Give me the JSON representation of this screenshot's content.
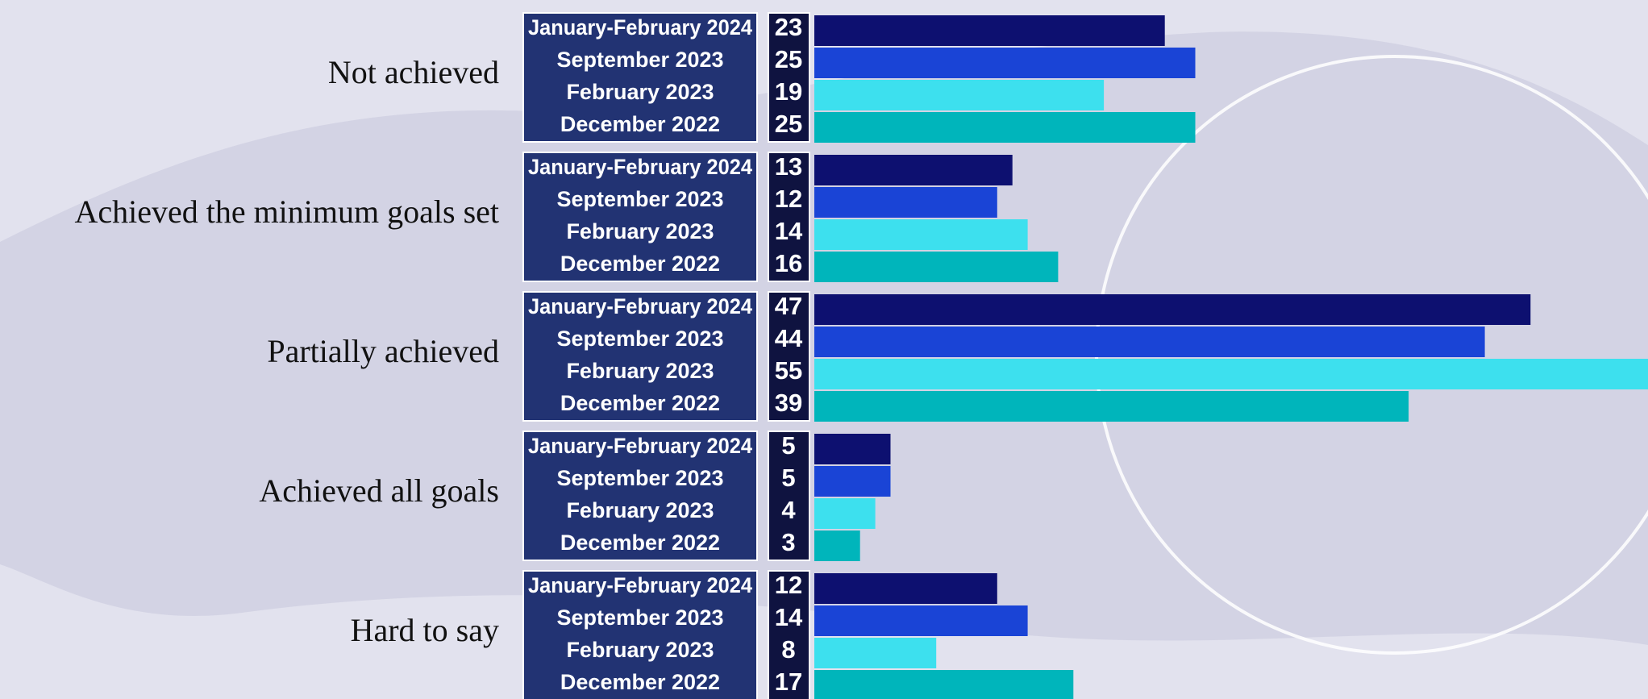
{
  "chart_data": {
    "type": "bar",
    "categories": [
      "Not achieved",
      "Achieved the minimum goals set",
      "Partially achieved",
      "Achieved all goals",
      "Hard to say"
    ],
    "series": [
      {
        "name": "January-February 2024",
        "color": "#0d1070",
        "values": [
          23,
          13,
          47,
          5,
          12
        ]
      },
      {
        "name": "September 2023",
        "color": "#1a44d6",
        "values": [
          25,
          12,
          44,
          5,
          14
        ]
      },
      {
        "name": "February 2023",
        "color": "#3de0ee",
        "values": [
          19,
          14,
          55,
          4,
          8
        ]
      },
      {
        "name": "December 2022",
        "color": "#00b5bb",
        "values": [
          25,
          16,
          39,
          3,
          17
        ]
      }
    ]
  }
}
